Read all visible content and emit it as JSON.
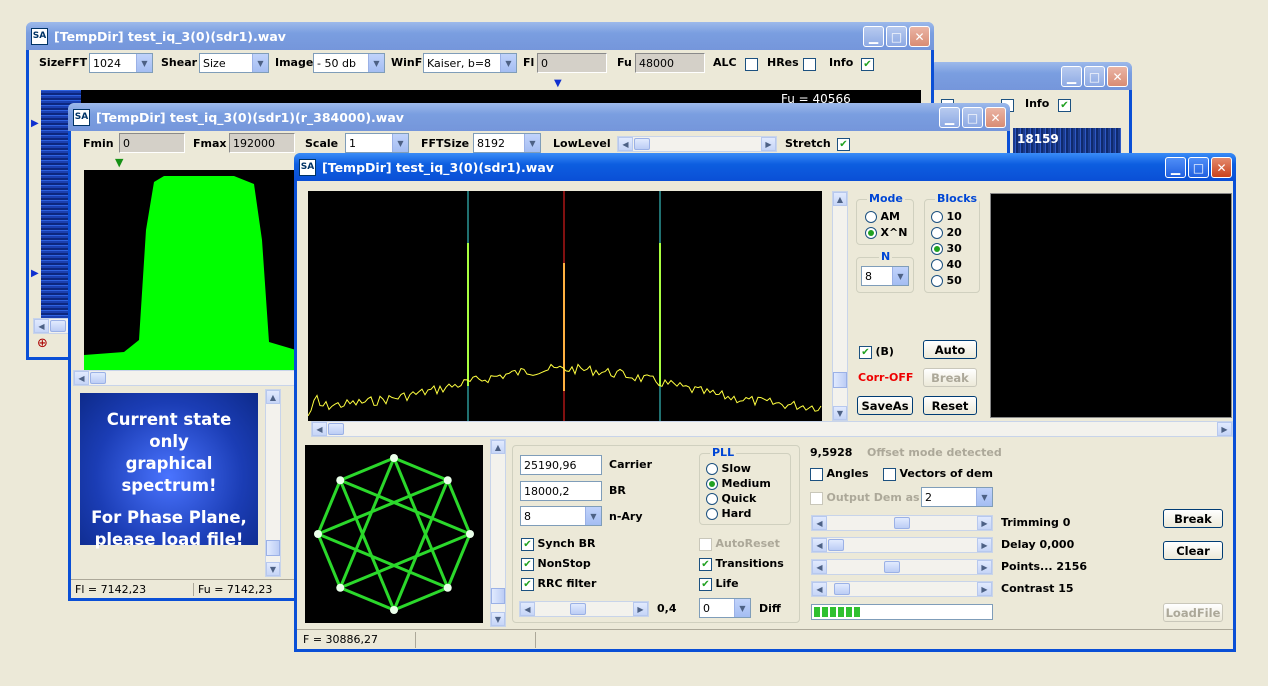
{
  "win1": {
    "title": "[TempDir] test_iq_3(0)(sdr1).wav",
    "sizefft_label": "SizeFFT",
    "sizefft_value": "1024",
    "shear_label": "Shear",
    "shear_value": "Size",
    "image_label": "Image",
    "image_value": "- 50 db",
    "winf_label": "WinF",
    "winf_value": "Kaiser, b=8",
    "fl_label": "Fl",
    "fl_value": "0",
    "fu_label": "Fu",
    "fu_value": "48000",
    "alc_label": "ALC",
    "hres_label": "HRes",
    "info_label": "Info",
    "fu_readout": "Fu = 40566"
  },
  "win2": {
    "info_label": "Info",
    "readout": "18159"
  },
  "win3": {
    "title": "[TempDir] test_iq_3(0)(sdr1)(r_384000).wav",
    "fmin_label": "Fmin",
    "fmin_value": "0",
    "fmax_label": "Fmax",
    "fmax_value": "192000",
    "scale_label": "Scale",
    "scale_value": "1",
    "fftsize_label": "FFTSize",
    "fftsize_value": "8192",
    "lowlevel_label": "LowLevel",
    "stretch_label": "Stretch",
    "msg_line1": "Current state",
    "msg_line2": "only",
    "msg_line3": "graphical spectrum!",
    "msg_line4": "For Phase Plane,",
    "msg_line5": "please load file!",
    "status_fl": "Fl = 7142,23",
    "status_fu": "Fu = 7142,23"
  },
  "main": {
    "title": "[TempDir] test_iq_3(0)(sdr1).wav",
    "mode_title": "Mode",
    "mode_am": "AM",
    "mode_xn": "X^N",
    "n_title": "N",
    "n_value": "8",
    "blocks_title": "Blocks",
    "blocks": [
      "10",
      "20",
      "30",
      "40",
      "50"
    ],
    "b_label": "(B)",
    "auto_btn": "Auto",
    "corr_off": "Corr-OFF",
    "break_btn_top": "Break",
    "saveas_btn": "SaveAs",
    "reset_btn": "Reset",
    "carrier_value": "25190,96",
    "carrier_label": "Carrier",
    "br_value": "18000,2",
    "br_label": "BR",
    "nary_value": "8",
    "nary_label": "n-Ary",
    "pll_title": "PLL",
    "pll_slow": "Slow",
    "pll_medium": "Medium",
    "pll_quick": "Quick",
    "pll_hard": "Hard",
    "synch_br": "Synch BR",
    "nonstop": "NonStop",
    "rrc_filter": "RRC filter",
    "autoreset": "AutoReset",
    "transitions": "Transitions",
    "life": "Life",
    "slider_value": "0,4",
    "diff_value": "0",
    "diff_label": "Diff",
    "offset_value": "9,5928",
    "offset_text": "Offset mode detected",
    "angles": "Angles",
    "vectors": "Vectors of dem",
    "output_dem": "Output Dem as",
    "output_dem_value": "2",
    "trimming": "Trimming 0",
    "delay": "Delay  0,000",
    "points": "Points... 2156",
    "contrast": "Contrast 15",
    "break_btn": "Break",
    "clear_btn": "Clear",
    "loadfile_btn": "LoadFile",
    "status_f": "F = 30886,27"
  }
}
